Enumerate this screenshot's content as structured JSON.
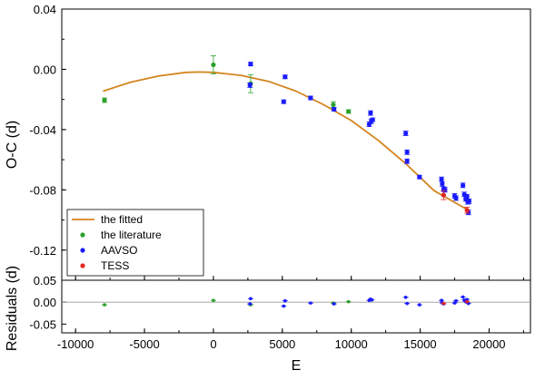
{
  "chart_data": {
    "type": "scatter",
    "xlabel": "E",
    "xlim": [
      -11000,
      23000
    ],
    "xticks": [
      -10000,
      -5000,
      0,
      5000,
      10000,
      15000,
      20000
    ],
    "xtick_labels": [
      "-10000",
      "-5000",
      "0",
      "5000",
      "10000",
      "15000",
      "20000"
    ],
    "main_panel": {
      "ylabel": "O-C (d)",
      "ylim": [
        -0.14,
        0.04
      ],
      "yticks": [
        -0.12,
        -0.08,
        -0.04,
        0.0,
        0.04
      ],
      "ytick_labels": [
        "-0.12",
        "-0.08",
        "-0.04",
        "0.00",
        "0.04"
      ],
      "fit": {
        "name": "the fitted",
        "color": "#d4851f",
        "x": [
          -8000,
          -6000,
          -4000,
          -2000,
          -1000,
          0,
          2000,
          4000,
          6000,
          8000,
          10000,
          12000,
          14000,
          16000,
          18500
        ],
        "y": [
          -0.0145,
          -0.0085,
          -0.0045,
          -0.002,
          -0.0018,
          -0.002,
          -0.004,
          -0.008,
          -0.0145,
          -0.0235,
          -0.034,
          -0.0475,
          -0.063,
          -0.0805,
          -0.0935
        ]
      },
      "series": [
        {
          "name": "the literature",
          "color": "#2aa02a",
          "points": [
            {
              "x": -7900,
              "y": -0.0205,
              "err": 0.0015
            },
            {
              "x": 0,
              "y": 0.003,
              "err": 0.006
            },
            {
              "x": 2700,
              "y": -0.0095,
              "err": 0.006
            },
            {
              "x": 8700,
              "y": -0.0235,
              "err": 0.002
            },
            {
              "x": 9800,
              "y": -0.028,
              "err": 0.0012
            }
          ]
        },
        {
          "name": "AAVSO",
          "color": "#1a1aff",
          "points": [
            {
              "x": 2650,
              "y": -0.0105,
              "err": 0.0015
            },
            {
              "x": 2700,
              "y": 0.0035,
              "err": 0.0012
            },
            {
              "x": 5100,
              "y": -0.0215,
              "err": 0.0012
            },
            {
              "x": 5200,
              "y": -0.005,
              "err": 0.0012
            },
            {
              "x": 7050,
              "y": -0.019,
              "err": 0.0012
            },
            {
              "x": 8750,
              "y": -0.0265,
              "err": 0.0012
            },
            {
              "x": 11300,
              "y": -0.0365,
              "err": 0.0015
            },
            {
              "x": 11400,
              "y": -0.029,
              "err": 0.0015
            },
            {
              "x": 11450,
              "y": -0.0345,
              "err": 0.0015
            },
            {
              "x": 11550,
              "y": -0.0335,
              "err": 0.0012
            },
            {
              "x": 13950,
              "y": -0.0425,
              "err": 0.0015
            },
            {
              "x": 14050,
              "y": -0.055,
              "err": 0.0015
            },
            {
              "x": 14050,
              "y": -0.061,
              "err": 0.0015
            },
            {
              "x": 14950,
              "y": -0.0715,
              "err": 0.0012
            },
            {
              "x": 16550,
              "y": -0.073,
              "err": 0.0015
            },
            {
              "x": 16600,
              "y": -0.076,
              "err": 0.0015
            },
            {
              "x": 16700,
              "y": -0.0795,
              "err": 0.0015
            },
            {
              "x": 16800,
              "y": -0.08,
              "err": 0.0015
            },
            {
              "x": 17500,
              "y": -0.084,
              "err": 0.0015
            },
            {
              "x": 17600,
              "y": -0.0855,
              "err": 0.0015
            },
            {
              "x": 18100,
              "y": -0.077,
              "err": 0.0015
            },
            {
              "x": 18200,
              "y": -0.083,
              "err": 0.0015
            },
            {
              "x": 18300,
              "y": -0.086,
              "err": 0.0015
            },
            {
              "x": 18400,
              "y": -0.0845,
              "err": 0.0015
            },
            {
              "x": 18450,
              "y": -0.088,
              "err": 0.0015
            },
            {
              "x": 18500,
              "y": -0.095,
              "err": 0.0015
            },
            {
              "x": 18550,
              "y": -0.0875,
              "err": 0.0015
            }
          ]
        },
        {
          "name": "TESS",
          "color": "#e0261f",
          "points": [
            {
              "x": 16700,
              "y": -0.0835,
              "err": 0.003
            },
            {
              "x": 18400,
              "y": -0.0935,
              "err": 0.002
            }
          ]
        }
      ],
      "legend_placement": "bottom-left"
    },
    "residual_panel": {
      "ylabel": "Residuals (d)",
      "ylim": [
        -0.07,
        0.05
      ],
      "yticks": [
        -0.05,
        0.0,
        0.05
      ],
      "ytick_labels": [
        "-0.05",
        "0.00",
        "0.05"
      ],
      "zero_line": true,
      "series": [
        {
          "name": "the literature",
          "color": "#2aa02a",
          "points": [
            {
              "x": -7900,
              "y": -0.006
            },
            {
              "x": 0,
              "y": 0.004
            },
            {
              "x": 2700,
              "y": -0.006
            },
            {
              "x": 8700,
              "y": -0.002
            },
            {
              "x": 9800,
              "y": 0.001
            }
          ]
        },
        {
          "name": "AAVSO",
          "color": "#1a1aff",
          "points": [
            {
              "x": 2650,
              "y": -0.004
            },
            {
              "x": 2700,
              "y": 0.008
            },
            {
              "x": 5100,
              "y": -0.009
            },
            {
              "x": 5200,
              "y": 0.003
            },
            {
              "x": 7050,
              "y": -0.002
            },
            {
              "x": 8750,
              "y": -0.004
            },
            {
              "x": 11300,
              "y": 0.004
            },
            {
              "x": 11400,
              "y": 0.007
            },
            {
              "x": 11500,
              "y": 0.005
            },
            {
              "x": 13950,
              "y": 0.011
            },
            {
              "x": 14050,
              "y": -0.003
            },
            {
              "x": 14950,
              "y": -0.006
            },
            {
              "x": 16550,
              "y": 0.004
            },
            {
              "x": 16600,
              "y": -0.002
            },
            {
              "x": 16700,
              "y": -0.004
            },
            {
              "x": 17500,
              "y": -0.002
            },
            {
              "x": 17600,
              "y": 0.003
            },
            {
              "x": 18100,
              "y": 0.012
            },
            {
              "x": 18200,
              "y": 0.005
            },
            {
              "x": 18300,
              "y": 0.001
            },
            {
              "x": 18400,
              "y": 0.006
            },
            {
              "x": 18500,
              "y": -0.003
            }
          ]
        },
        {
          "name": "TESS",
          "color": "#e0261f",
          "points": [
            {
              "x": 16700,
              "y": -0.003
            },
            {
              "x": 18400,
              "y": 0.001
            }
          ]
        }
      ]
    }
  },
  "legend": {
    "items": [
      {
        "label": "the fitted",
        "kind": "line",
        "color": "#d4851f"
      },
      {
        "label": "the literature",
        "kind": "dot",
        "color": "#2aa02a"
      },
      {
        "label": "AAVSO",
        "kind": "dot",
        "color": "#1a1aff"
      },
      {
        "label": "TESS",
        "kind": "dot",
        "color": "#e0261f"
      }
    ]
  }
}
